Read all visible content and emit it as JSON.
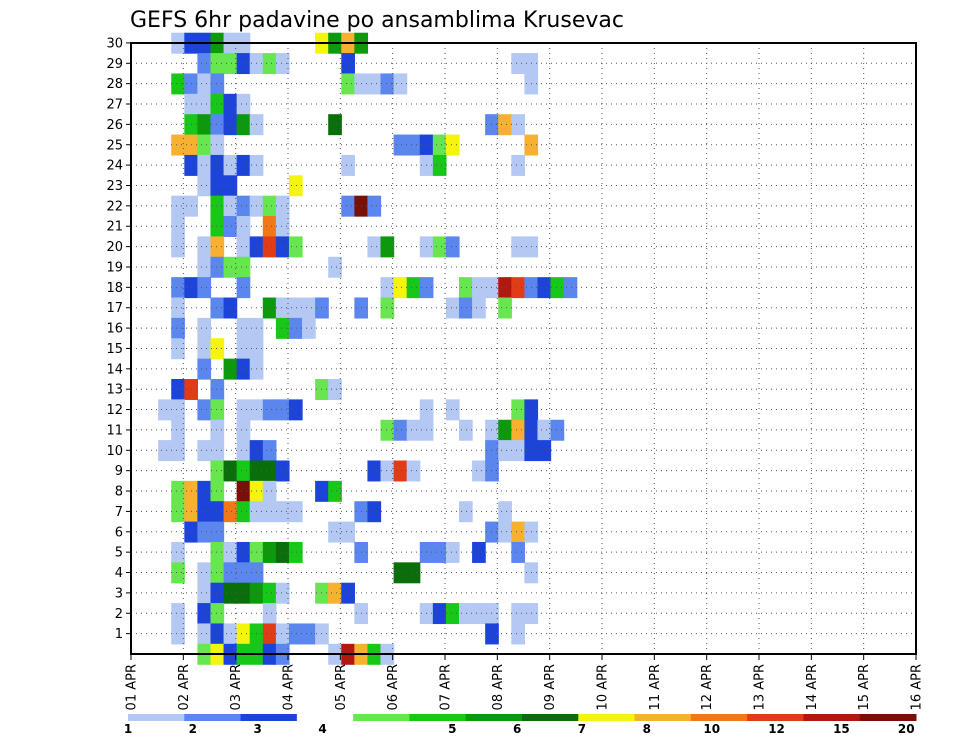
{
  "chart_data": {
    "type": "heatmap",
    "title": "GEFS 6hr padavine po ansamblima Krusevac",
    "xlabel": "",
    "ylabel": "",
    "x_tick_labels": [
      "01 APR",
      "02 APR",
      "03 APR",
      "04 APR",
      "05 APR",
      "06 APR",
      "07 APR",
      "08 APR",
      "09 APR",
      "10 APR",
      "11 APR",
      "12 APR",
      "13 APR",
      "14 APR",
      "15 APR",
      "16 APR"
    ],
    "x_range_steps": [
      0,
      60
    ],
    "y_tick_labels": [
      "1",
      "2",
      "3",
      "4",
      "5",
      "6",
      "7",
      "8",
      "9",
      "10",
      "11",
      "12",
      "13",
      "14",
      "15",
      "16",
      "17",
      "18",
      "19",
      "20",
      "21",
      "22",
      "23",
      "24",
      "25",
      "26",
      "27",
      "28",
      "29",
      "30"
    ],
    "y_range_members": [
      0,
      30
    ],
    "grid": true,
    "colorbar": {
      "labels": [
        "1",
        "2",
        "3",
        "4",
        "5",
        "6",
        "7",
        "8",
        "10",
        "12",
        "15",
        "20"
      ],
      "colors": [
        "#b4c8f4",
        "#5a86ee",
        "#1c44d8",
        "#ffffff",
        "#68e650",
        "#18c818",
        "#0c9a0c",
        "#0a6e0a",
        "#f4f40c",
        "#f8b030",
        "#f07818",
        "#e03c18",
        "#b01810",
        "#781008"
      ]
    },
    "class_colors": [
      "#b4c8f4",
      "#5a86ee",
      "#1c44d8",
      "#68e650",
      "#18c818",
      "#0c9a0c",
      "#0a6e0a",
      "#f4f40c",
      "#f8b030",
      "#f07818",
      "#e03c18",
      "#b01810",
      "#781008"
    ],
    "cells": [
      [
        3,
        30,
        0
      ],
      [
        4,
        30,
        2
      ],
      [
        5,
        30,
        2
      ],
      [
        6,
        30,
        5
      ],
      [
        7,
        30,
        0
      ],
      [
        8,
        30,
        0
      ],
      [
        14,
        30,
        7
      ],
      [
        15,
        30,
        5
      ],
      [
        16,
        30,
        8
      ],
      [
        17,
        30,
        5
      ],
      [
        5,
        29,
        1
      ],
      [
        6,
        29,
        3
      ],
      [
        7,
        29,
        3
      ],
      [
        8,
        29,
        2
      ],
      [
        9,
        29,
        0
      ],
      [
        10,
        29,
        3
      ],
      [
        11,
        29,
        0
      ],
      [
        16,
        29,
        2
      ],
      [
        29,
        29,
        0
      ],
      [
        30,
        29,
        0
      ],
      [
        3,
        28,
        4
      ],
      [
        4,
        28,
        1
      ],
      [
        5,
        28,
        0
      ],
      [
        6,
        28,
        1
      ],
      [
        16,
        28,
        3
      ],
      [
        17,
        28,
        0
      ],
      [
        18,
        28,
        0
      ],
      [
        19,
        28,
        1
      ],
      [
        20,
        28,
        0
      ],
      [
        30,
        28,
        0
      ],
      [
        4,
        27,
        0
      ],
      [
        5,
        27,
        0
      ],
      [
        6,
        27,
        4
      ],
      [
        7,
        27,
        2
      ],
      [
        8,
        27,
        0
      ],
      [
        4,
        26,
        4
      ],
      [
        5,
        26,
        5
      ],
      [
        6,
        26,
        1
      ],
      [
        7,
        26,
        2
      ],
      [
        8,
        26,
        5
      ],
      [
        9,
        26,
        0
      ],
      [
        15,
        26,
        6
      ],
      [
        27,
        26,
        1
      ],
      [
        28,
        26,
        8
      ],
      [
        29,
        26,
        0
      ],
      [
        3,
        25,
        8
      ],
      [
        4,
        25,
        8
      ],
      [
        5,
        25,
        3
      ],
      [
        6,
        25,
        0
      ],
      [
        20,
        25,
        1
      ],
      [
        21,
        25,
        1
      ],
      [
        22,
        25,
        2
      ],
      [
        23,
        25,
        3
      ],
      [
        24,
        25,
        7
      ],
      [
        30,
        25,
        8
      ],
      [
        4,
        24,
        2
      ],
      [
        5,
        24,
        0
      ],
      [
        6,
        24,
        2
      ],
      [
        7,
        24,
        0
      ],
      [
        8,
        24,
        2
      ],
      [
        9,
        24,
        0
      ],
      [
        16,
        24,
        0
      ],
      [
        22,
        24,
        0
      ],
      [
        23,
        24,
        4
      ],
      [
        29,
        24,
        0
      ],
      [
        5,
        23,
        0
      ],
      [
        6,
        23,
        2
      ],
      [
        7,
        23,
        2
      ],
      [
        12,
        23,
        7
      ],
      [
        3,
        22,
        0
      ],
      [
        4,
        22,
        0
      ],
      [
        6,
        22,
        4
      ],
      [
        7,
        22,
        0
      ],
      [
        8,
        22,
        1
      ],
      [
        9,
        22,
        0
      ],
      [
        10,
        22,
        3
      ],
      [
        11,
        22,
        0
      ],
      [
        16,
        22,
        1
      ],
      [
        17,
        22,
        12
      ],
      [
        18,
        22,
        1
      ],
      [
        3,
        21,
        0
      ],
      [
        6,
        21,
        4
      ],
      [
        7,
        21,
        1
      ],
      [
        8,
        21,
        0
      ],
      [
        10,
        21,
        9
      ],
      [
        11,
        21,
        0
      ],
      [
        3,
        20,
        0
      ],
      [
        5,
        20,
        0
      ],
      [
        6,
        20,
        8
      ],
      [
        8,
        20,
        0
      ],
      [
        9,
        20,
        2
      ],
      [
        10,
        20,
        10
      ],
      [
        11,
        20,
        2
      ],
      [
        12,
        20,
        3
      ],
      [
        18,
        20,
        0
      ],
      [
        19,
        20,
        5
      ],
      [
        22,
        20,
        0
      ],
      [
        23,
        20,
        3
      ],
      [
        24,
        20,
        1
      ],
      [
        29,
        20,
        0
      ],
      [
        30,
        20,
        0
      ],
      [
        5,
        19,
        0
      ],
      [
        6,
        19,
        1
      ],
      [
        7,
        19,
        3
      ],
      [
        8,
        19,
        3
      ],
      [
        15,
        19,
        0
      ],
      [
        3,
        18,
        1
      ],
      [
        4,
        18,
        2
      ],
      [
        5,
        18,
        1
      ],
      [
        8,
        18,
        1
      ],
      [
        19,
        18,
        0
      ],
      [
        20,
        18,
        7
      ],
      [
        21,
        18,
        4
      ],
      [
        22,
        18,
        1
      ],
      [
        25,
        18,
        3
      ],
      [
        26,
        18,
        0
      ],
      [
        27,
        18,
        0
      ],
      [
        28,
        18,
        11
      ],
      [
        29,
        18,
        10
      ],
      [
        30,
        18,
        1
      ],
      [
        31,
        18,
        2
      ],
      [
        32,
        18,
        4
      ],
      [
        33,
        18,
        1
      ],
      [
        3,
        17,
        0
      ],
      [
        6,
        17,
        1
      ],
      [
        7,
        17,
        2
      ],
      [
        10,
        17,
        5
      ],
      [
        11,
        17,
        0
      ],
      [
        12,
        17,
        0
      ],
      [
        13,
        17,
        0
      ],
      [
        14,
        17,
        1
      ],
      [
        17,
        17,
        1
      ],
      [
        19,
        17,
        3
      ],
      [
        24,
        17,
        0
      ],
      [
        25,
        17,
        1
      ],
      [
        26,
        17,
        0
      ],
      [
        28,
        17,
        3
      ],
      [
        3,
        16,
        1
      ],
      [
        5,
        16,
        0
      ],
      [
        8,
        16,
        0
      ],
      [
        9,
        16,
        0
      ],
      [
        11,
        16,
        4
      ],
      [
        12,
        16,
        1
      ],
      [
        13,
        16,
        0
      ],
      [
        3,
        15,
        0
      ],
      [
        5,
        15,
        0
      ],
      [
        6,
        15,
        7
      ],
      [
        8,
        15,
        0
      ],
      [
        9,
        15,
        0
      ],
      [
        5,
        14,
        1
      ],
      [
        7,
        14,
        5
      ],
      [
        8,
        14,
        2
      ],
      [
        9,
        14,
        0
      ],
      [
        3,
        13,
        2
      ],
      [
        4,
        13,
        10
      ],
      [
        6,
        13,
        1
      ],
      [
        14,
        13,
        3
      ],
      [
        15,
        13,
        0
      ],
      [
        2,
        12,
        0
      ],
      [
        3,
        12,
        0
      ],
      [
        5,
        12,
        1
      ],
      [
        6,
        12,
        3
      ],
      [
        8,
        12,
        0
      ],
      [
        9,
        12,
        0
      ],
      [
        10,
        12,
        1
      ],
      [
        11,
        12,
        1
      ],
      [
        12,
        12,
        2
      ],
      [
        22,
        12,
        0
      ],
      [
        24,
        12,
        0
      ],
      [
        29,
        12,
        3
      ],
      [
        30,
        12,
        2
      ],
      [
        3,
        11,
        0
      ],
      [
        6,
        11,
        0
      ],
      [
        8,
        11,
        0
      ],
      [
        19,
        11,
        3
      ],
      [
        20,
        11,
        1
      ],
      [
        21,
        11,
        0
      ],
      [
        22,
        11,
        0
      ],
      [
        25,
        11,
        0
      ],
      [
        27,
        11,
        0
      ],
      [
        28,
        11,
        5
      ],
      [
        29,
        11,
        8
      ],
      [
        30,
        11,
        2
      ],
      [
        31,
        11,
        0
      ],
      [
        32,
        11,
        1
      ],
      [
        2,
        10,
        0
      ],
      [
        3,
        10,
        0
      ],
      [
        5,
        10,
        0
      ],
      [
        6,
        10,
        0
      ],
      [
        8,
        10,
        0
      ],
      [
        9,
        10,
        2
      ],
      [
        10,
        10,
        1
      ],
      [
        27,
        10,
        1
      ],
      [
        28,
        10,
        0
      ],
      [
        29,
        10,
        0
      ],
      [
        30,
        10,
        2
      ],
      [
        31,
        10,
        2
      ],
      [
        6,
        9,
        3
      ],
      [
        7,
        9,
        6
      ],
      [
        8,
        9,
        4
      ],
      [
        9,
        9,
        6
      ],
      [
        10,
        9,
        6
      ],
      [
        11,
        9,
        2
      ],
      [
        18,
        9,
        2
      ],
      [
        19,
        9,
        0
      ],
      [
        20,
        9,
        10
      ],
      [
        21,
        9,
        0
      ],
      [
        26,
        9,
        0
      ],
      [
        27,
        9,
        1
      ],
      [
        3,
        8,
        3
      ],
      [
        4,
        8,
        8
      ],
      [
        5,
        8,
        2
      ],
      [
        6,
        8,
        3
      ],
      [
        8,
        8,
        12
      ],
      [
        9,
        8,
        7
      ],
      [
        10,
        8,
        0
      ],
      [
        14,
        8,
        2
      ],
      [
        15,
        8,
        4
      ],
      [
        3,
        7,
        3
      ],
      [
        4,
        7,
        8
      ],
      [
        5,
        7,
        2
      ],
      [
        6,
        7,
        2
      ],
      [
        7,
        7,
        9
      ],
      [
        8,
        7,
        4
      ],
      [
        9,
        7,
        0
      ],
      [
        10,
        7,
        0
      ],
      [
        11,
        7,
        0
      ],
      [
        12,
        7,
        0
      ],
      [
        17,
        7,
        1
      ],
      [
        18,
        7,
        2
      ],
      [
        25,
        7,
        0
      ],
      [
        28,
        7,
        0
      ],
      [
        4,
        6,
        2
      ],
      [
        5,
        6,
        1
      ],
      [
        6,
        6,
        1
      ],
      [
        15,
        6,
        0
      ],
      [
        16,
        6,
        0
      ],
      [
        27,
        6,
        1
      ],
      [
        28,
        6,
        0
      ],
      [
        29,
        6,
        8
      ],
      [
        30,
        6,
        0
      ],
      [
        3,
        5,
        0
      ],
      [
        6,
        5,
        3
      ],
      [
        7,
        5,
        0
      ],
      [
        8,
        5,
        2
      ],
      [
        9,
        5,
        3
      ],
      [
        10,
        5,
        5
      ],
      [
        11,
        5,
        6
      ],
      [
        12,
        5,
        4
      ],
      [
        17,
        5,
        1
      ],
      [
        22,
        5,
        1
      ],
      [
        23,
        5,
        1
      ],
      [
        24,
        5,
        0
      ],
      [
        26,
        5,
        2
      ],
      [
        29,
        5,
        1
      ],
      [
        3,
        4,
        3
      ],
      [
        5,
        4,
        0
      ],
      [
        6,
        4,
        3
      ],
      [
        7,
        4,
        1
      ],
      [
        8,
        4,
        1
      ],
      [
        9,
        4,
        1
      ],
      [
        20,
        4,
        6
      ],
      [
        21,
        4,
        6
      ],
      [
        30,
        4,
        0
      ],
      [
        5,
        3,
        0
      ],
      [
        6,
        3,
        2
      ],
      [
        7,
        3,
        6
      ],
      [
        8,
        3,
        6
      ],
      [
        9,
        3,
        5
      ],
      [
        10,
        3,
        4
      ],
      [
        11,
        3,
        0
      ],
      [
        14,
        3,
        3
      ],
      [
        15,
        3,
        8
      ],
      [
        16,
        3,
        2
      ],
      [
        3,
        2,
        0
      ],
      [
        5,
        2,
        2
      ],
      [
        6,
        2,
        3
      ],
      [
        10,
        2,
        0
      ],
      [
        17,
        2,
        0
      ],
      [
        22,
        2,
        0
      ],
      [
        23,
        2,
        2
      ],
      [
        24,
        2,
        4
      ],
      [
        25,
        2,
        0
      ],
      [
        26,
        2,
        0
      ],
      [
        27,
        2,
        0
      ],
      [
        29,
        2,
        0
      ],
      [
        30,
        2,
        0
      ],
      [
        3,
        1,
        0
      ],
      [
        5,
        1,
        0
      ],
      [
        6,
        1,
        2
      ],
      [
        7,
        1,
        0
      ],
      [
        8,
        1,
        7
      ],
      [
        9,
        1,
        4
      ],
      [
        10,
        1,
        10
      ],
      [
        11,
        1,
        0
      ],
      [
        12,
        1,
        1
      ],
      [
        13,
        1,
        1
      ],
      [
        14,
        1,
        0
      ],
      [
        27,
        1,
        2
      ],
      [
        29,
        1,
        0
      ],
      [
        5,
        0,
        3
      ],
      [
        6,
        0,
        7
      ],
      [
        7,
        0,
        2
      ],
      [
        8,
        0,
        4
      ],
      [
        9,
        0,
        4
      ],
      [
        10,
        0,
        2
      ],
      [
        11,
        0,
        1
      ],
      [
        15,
        0,
        0
      ],
      [
        16,
        0,
        11
      ],
      [
        17,
        0,
        8
      ],
      [
        18,
        0,
        4
      ],
      [
        19,
        0,
        0
      ]
    ]
  }
}
